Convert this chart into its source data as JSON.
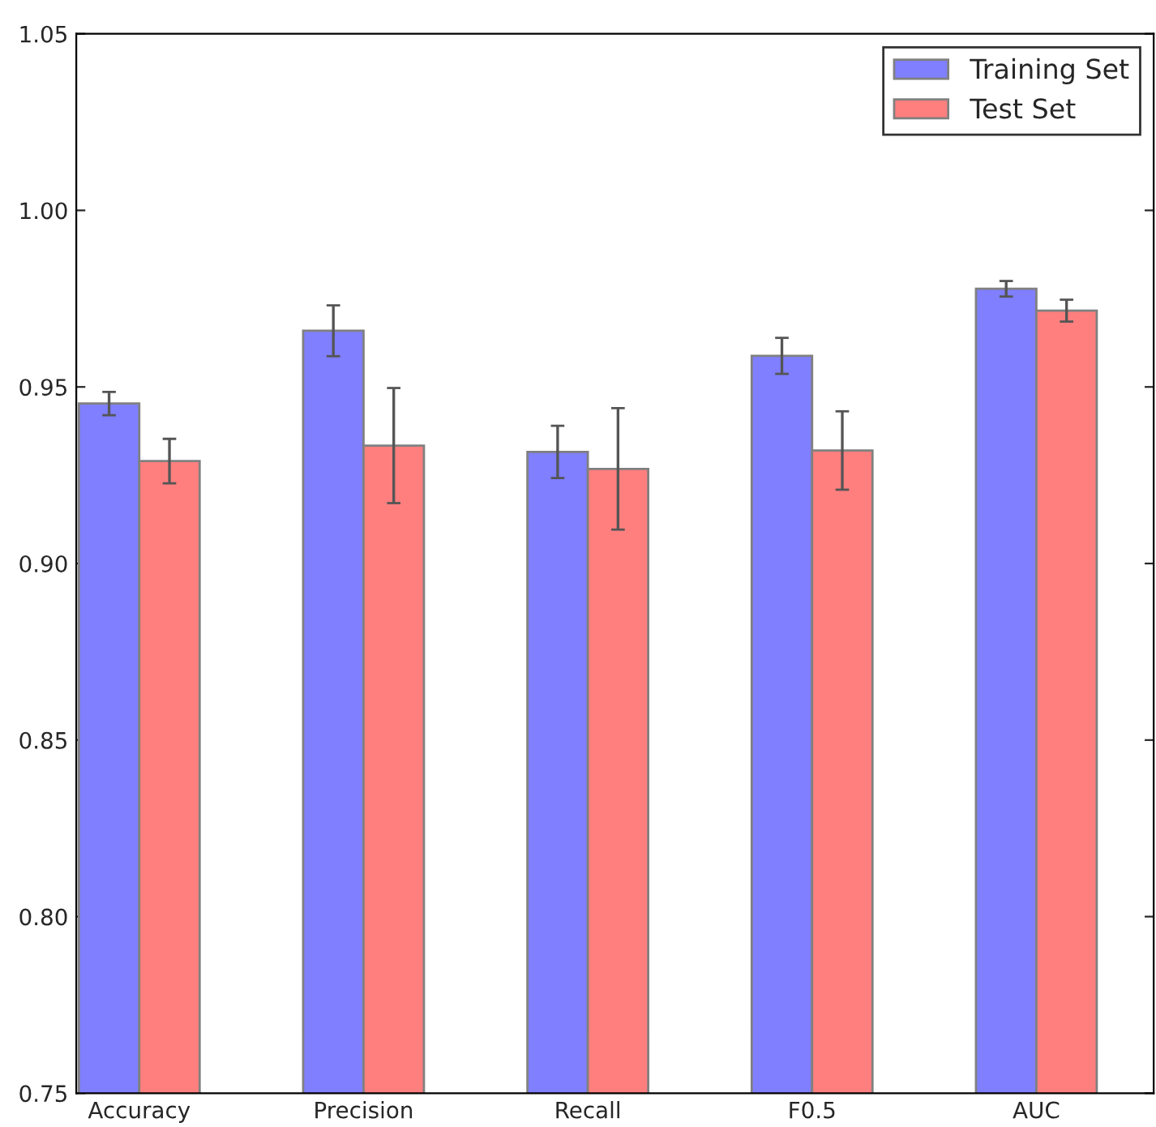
{
  "chart_data": {
    "type": "bar",
    "categories": [
      "Accuracy",
      "Precision",
      "Recall",
      "F0.5",
      "AUC"
    ],
    "series": [
      {
        "name": "Training Set",
        "color": "#7f7fff",
        "values": [
          0.9453,
          0.9659,
          0.9316,
          0.9588,
          0.9778
        ],
        "errors": [
          0.0033,
          0.0072,
          0.0074,
          0.0051,
          0.0022
        ]
      },
      {
        "name": "Test Set",
        "color": "#ff7f7f",
        "values": [
          0.929,
          0.9334,
          0.9268,
          0.932,
          0.9716
        ],
        "errors": [
          0.0063,
          0.0163,
          0.0172,
          0.0111,
          0.0031
        ]
      }
    ],
    "ylim": [
      0.75,
      1.05
    ],
    "yticks": [
      {
        "value": 0.75,
        "label": "0.75"
      },
      {
        "value": 0.8,
        "label": "0.80"
      },
      {
        "value": 0.85,
        "label": "0.85"
      },
      {
        "value": 0.9,
        "label": "0.90"
      },
      {
        "value": 0.95,
        "label": "0.95"
      },
      {
        "value": 1.0,
        "label": "1.00"
      },
      {
        "value": 1.05,
        "label": "1.05"
      }
    ],
    "grid": false,
    "legend": "top right"
  }
}
